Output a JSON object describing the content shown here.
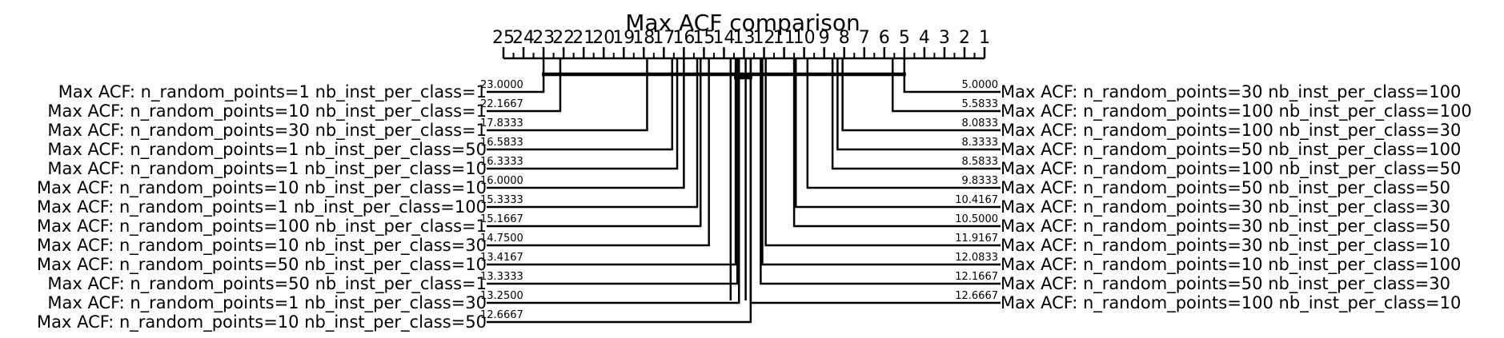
{
  "chart_data": {
    "type": "critical-difference-diagram",
    "title": "Max ACF comparison",
    "axis": {
      "min_rank": 1,
      "max_rank": 25,
      "reversed": true,
      "tick_labels": [
        "25",
        "24",
        "23",
        "22",
        "21",
        "20",
        "19",
        "18",
        "17",
        "16",
        "15",
        "14",
        "13",
        "12",
        "11",
        "10",
        "9",
        "8",
        "7",
        "6",
        "5",
        "4",
        "3",
        "2",
        "1"
      ]
    },
    "left_methods": [
      {
        "name": "Max ACF: n_random_points=1 nb_inst_per_class=1",
        "rank": 23.0,
        "rank_label": "23.0000"
      },
      {
        "name": "Max ACF: n_random_points=10 nb_inst_per_class=1",
        "rank": 22.1667,
        "rank_label": "22.1667"
      },
      {
        "name": "Max ACF: n_random_points=30 nb_inst_per_class=1",
        "rank": 17.8333,
        "rank_label": "17.8333"
      },
      {
        "name": "Max ACF: n_random_points=1 nb_inst_per_class=50",
        "rank": 16.5833,
        "rank_label": "16.5833"
      },
      {
        "name": "Max ACF: n_random_points=1 nb_inst_per_class=10",
        "rank": 16.3333,
        "rank_label": "16.3333"
      },
      {
        "name": "Max ACF: n_random_points=10 nb_inst_per_class=10",
        "rank": 16.0,
        "rank_label": "16.0000"
      },
      {
        "name": "Max ACF: n_random_points=1 nb_inst_per_class=100",
        "rank": 15.3333,
        "rank_label": "15.3333"
      },
      {
        "name": "Max ACF: n_random_points=100 nb_inst_per_class=1",
        "rank": 15.1667,
        "rank_label": "15.1667"
      },
      {
        "name": "Max ACF: n_random_points=10 nb_inst_per_class=30",
        "rank": 14.75,
        "rank_label": "14.7500"
      },
      {
        "name": "Max ACF: n_random_points=50 nb_inst_per_class=10",
        "rank": 13.4167,
        "rank_label": "13.4167"
      },
      {
        "name": "Max ACF: n_random_points=50 nb_inst_per_class=1",
        "rank": 13.3333,
        "rank_label": "13.3333"
      },
      {
        "name": "Max ACF: n_random_points=1 nb_inst_per_class=30",
        "rank": 13.25,
        "rank_label": "13.2500"
      },
      {
        "name": "Max ACF: n_random_points=10 nb_inst_per_class=50",
        "rank": 12.6667,
        "rank_label": "12.6667"
      }
    ],
    "right_methods": [
      {
        "name": "Max ACF: n_random_points=30 nb_inst_per_class=100",
        "rank": 5.0,
        "rank_label": "5.0000"
      },
      {
        "name": "Max ACF: n_random_points=100 nb_inst_per_class=100",
        "rank": 5.5833,
        "rank_label": "5.5833"
      },
      {
        "name": "Max ACF: n_random_points=100 nb_inst_per_class=30",
        "rank": 8.0833,
        "rank_label": "8.0833"
      },
      {
        "name": "Max ACF: n_random_points=50 nb_inst_per_class=100",
        "rank": 8.3333,
        "rank_label": "8.3333"
      },
      {
        "name": "Max ACF: n_random_points=100 nb_inst_per_class=50",
        "rank": 8.5833,
        "rank_label": "8.5833"
      },
      {
        "name": "Max ACF: n_random_points=50 nb_inst_per_class=50",
        "rank": 9.8333,
        "rank_label": "9.8333"
      },
      {
        "name": "Max ACF: n_random_points=30 nb_inst_per_class=30",
        "rank": 10.4167,
        "rank_label": "10.4167"
      },
      {
        "name": "Max ACF: n_random_points=30 nb_inst_per_class=50",
        "rank": 10.5,
        "rank_label": "10.5000"
      },
      {
        "name": "Max ACF: n_random_points=30 nb_inst_per_class=10",
        "rank": 11.9167,
        "rank_label": "11.9167"
      },
      {
        "name": "Max ACF: n_random_points=10 nb_inst_per_class=100",
        "rank": 12.0833,
        "rank_label": "12.0833"
      },
      {
        "name": "Max ACF: n_random_points=50 nb_inst_per_class=30",
        "rank": 12.1667,
        "rank_label": "12.1667"
      },
      {
        "name": "Max ACF: n_random_points=100 nb_inst_per_class=10",
        "rank": 12.6667,
        "rank_label": "12.6667"
      }
    ],
    "cliques": [
      {
        "from_rank": 5.0,
        "to_rank": 23.0
      },
      {
        "from_rank": 12.6667,
        "to_rank": 13.4167
      }
    ]
  }
}
